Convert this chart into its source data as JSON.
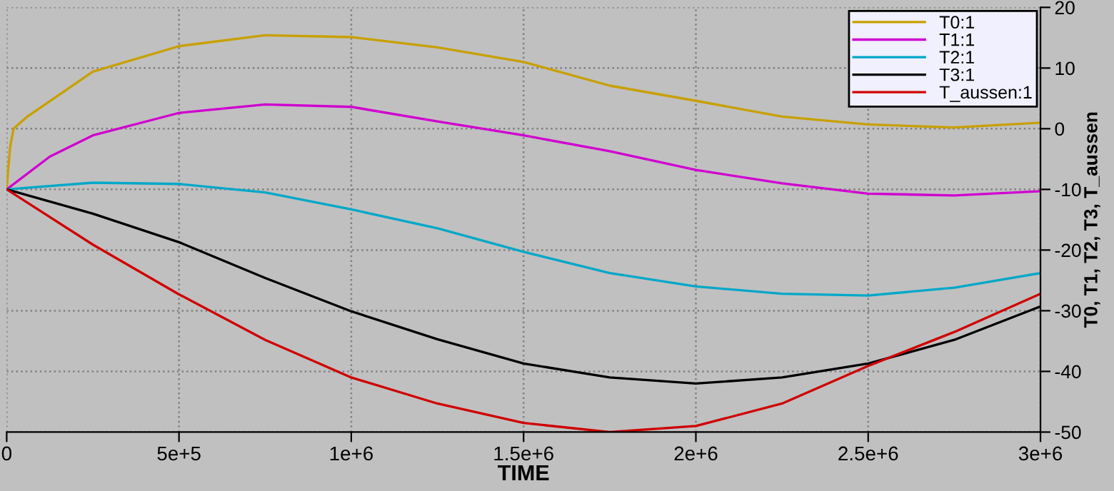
{
  "chart_data": {
    "type": "line",
    "xlabel": "TIME",
    "ylabel": "T0, T1, T2, T3, T_aussen",
    "series": [
      {
        "name": "T0:1",
        "color": "#c8a000",
        "x": [
          0,
          5000,
          10000,
          20000,
          60000,
          250000,
          500000,
          750000,
          1000000,
          1250000,
          1500000,
          1750000,
          2000000,
          2250000,
          2500000,
          2750000,
          3000000
        ],
        "values": [
          -10,
          -6.3,
          -3,
          0,
          2,
          9.4,
          13.6,
          15.4,
          15.1,
          13.4,
          11,
          7.1,
          4.6,
          2,
          0.7,
          0.2,
          1
        ]
      },
      {
        "name": "T1:1",
        "color": "#d000d0",
        "x": [
          0,
          125000,
          250000,
          500000,
          750000,
          1000000,
          1250000,
          1500000,
          1750000,
          2000000,
          2250000,
          2500000,
          2750000,
          3000000
        ],
        "values": [
          -10,
          -4.6,
          -1.1,
          2.6,
          4,
          3.6,
          1.2,
          -1.1,
          -3.7,
          -6.8,
          -9,
          -10.7,
          -11,
          -10.3
        ]
      },
      {
        "name": "T2:1",
        "color": "#00a8c8",
        "x": [
          0,
          250000,
          500000,
          750000,
          1000000,
          1250000,
          1500000,
          1750000,
          2000000,
          2250000,
          2500000,
          2750000,
          3000000
        ],
        "values": [
          -10,
          -8.9,
          -9.1,
          -10.5,
          -13.3,
          -16.4,
          -20.3,
          -23.8,
          -26,
          -27.2,
          -27.5,
          -26.2,
          -23.8
        ]
      },
      {
        "name": "T3:1",
        "color": "#000000",
        "x": [
          0,
          250000,
          500000,
          750000,
          1000000,
          1250000,
          1500000,
          1750000,
          2000000,
          2250000,
          2500000,
          2750000,
          3000000
        ],
        "values": [
          -10,
          -14,
          -18.7,
          -24.6,
          -30.1,
          -34.7,
          -38.7,
          -41,
          -42,
          -41,
          -38.7,
          -34.8,
          -29.3
        ]
      },
      {
        "name": "T_aussen:1",
        "color": "#d00000",
        "x": [
          0,
          250000,
          500000,
          750000,
          1000000,
          1250000,
          1500000,
          1750000,
          2000000,
          2250000,
          2500000,
          2750000,
          3000000
        ],
        "values": [
          -10,
          -19.1,
          -27.3,
          -34.8,
          -41,
          -45.3,
          -48.5,
          -50,
          -49,
          -45.3,
          -39.1,
          -33.5,
          -27.2
        ]
      }
    ],
    "xlim": [
      0,
      3000000
    ],
    "xticks": [
      0,
      {
        "value": 500000,
        "label": "5e+5"
      },
      {
        "value": 1000000,
        "label": "1e+6"
      },
      {
        "value": 1500000,
        "label": "1.5e+6"
      },
      {
        "value": 2000000,
        "label": "2e+6"
      },
      {
        "value": 2500000,
        "label": "2.5e+6"
      },
      {
        "value": 3000000,
        "label": "3e+6"
      }
    ],
    "ylim": [
      -50,
      20
    ],
    "yticks": [
      20,
      10,
      0,
      -10,
      -20,
      -30,
      -40,
      -50
    ],
    "grid": true,
    "legend": "top right",
    "line_style": "solid"
  }
}
